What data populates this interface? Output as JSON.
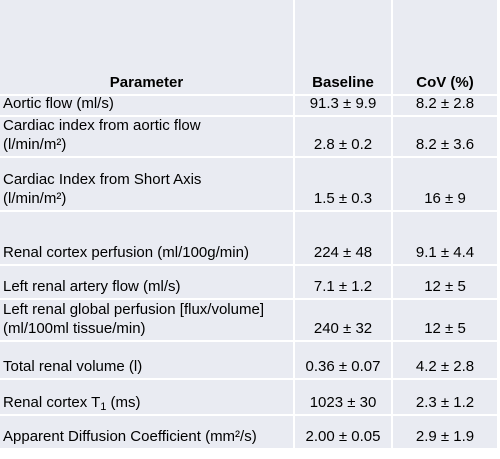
{
  "table": {
    "headers": [
      "Parameter",
      "Baseline",
      "CoV (%)"
    ],
    "rows": [
      {
        "param": [
          "Aortic flow (ml/s)"
        ],
        "baseline": "91.3 ± 9.9",
        "cov": "8.2 ± 2.8"
      },
      {
        "param": [
          "Cardiac index from aortic flow",
          "(l/min/m²)"
        ],
        "baseline": "2.8 ± 0.2",
        "cov": "8.2 ± 3.6"
      },
      {
        "param": [
          "Cardiac Index from Short Axis",
          "(l/min/m²)"
        ],
        "baseline": "1.5 ± 0.3",
        "cov": "16 ± 9"
      },
      {
        "param": [
          "Renal cortex perfusion (ml/100g/min)"
        ],
        "baseline": "224 ± 48",
        "cov": "9.1 ± 4.4"
      },
      {
        "param": [
          "Left renal artery flow (ml/s)"
        ],
        "baseline": "7.1 ± 1.2",
        "cov": "12 ± 5"
      },
      {
        "param": [
          "Left renal global perfusion [flux/volume]",
          "(ml/100ml tissue/min)"
        ],
        "baseline": "240 ± 32",
        "cov": "12 ± 5"
      },
      {
        "param": [
          "Total renal volume (l)"
        ],
        "baseline": "0.36 ± 0.07",
        "cov": "4.2 ± 2.8"
      },
      {
        "param": [
          "Renal cortex T",
          "1",
          " (ms)"
        ],
        "baseline": "1023 ± 30",
        "cov": "2.3 ± 1.2"
      },
      {
        "param": [
          "Apparent Diffusion Coefficient (mm²/s)"
        ],
        "baseline": "2.00 ± 0.05",
        "cov": "2.9 ± 1.9"
      }
    ]
  }
}
